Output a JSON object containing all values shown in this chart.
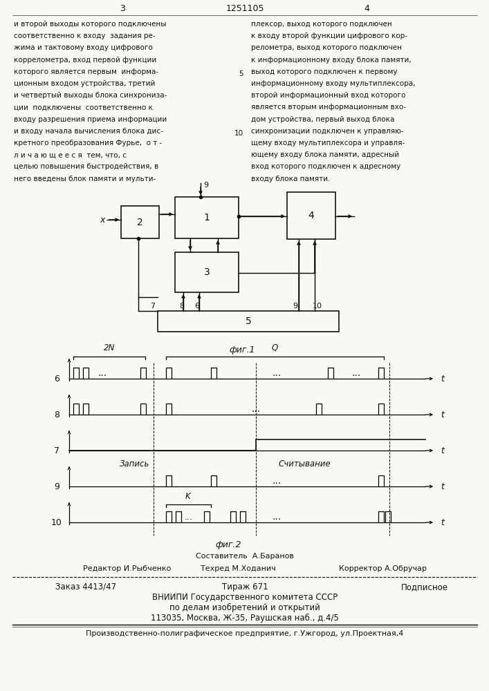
{
  "bg_color": "#f8f8f4",
  "text_color": "#111111",
  "page_num_left": "3",
  "page_num_center": "1251105",
  "page_num_right": "4",
  "text_left_lines": [
    "и второй выходы которого подключены",
    "соответственно к входу  задания ре-",
    "жима и тактовому входу цифрового",
    "коррелометра, вход первой функции",
    "которого является первым  информа-",
    "ционным входом устройства, третий",
    "и четвертый выходы блока синхрониза-",
    "ции  подключены  соответственно к",
    "входу разрешения приема информации",
    "и входу начала вычисления блока дис-",
    "кретного преобразования Фурье,  о т -",
    "л и ч а ю щ е е с я  тем, что, с",
    "целью повышения быстродействия, в",
    "него введены блок памяти и мульти-"
  ],
  "text_right_lines": [
    "плексор, выход которого подключен",
    "к входу второй функции цифрового кор-",
    "релометра, выход которого подключен",
    "к информационному входу блока памяти,",
    "выход которого подключен к первому",
    "информационному входу мультиплексора,",
    "второй информационный вход которого",
    "является вторым информационным вхо-",
    "дом устройства, первый выход блока",
    "синхронизации подключен к управляю-",
    "щему входу мультиплексора и управля-",
    "ющему входу блока памяти, адресный",
    "вход которого подключен к адресному",
    "входу блока памяти."
  ],
  "fig1_label": "фиг.1",
  "fig2_label": "фиг.2",
  "composer": "Составитель  А.Баранов",
  "editor": "Редактор И.Рыбченко",
  "techred": "Техред М.Ходанич",
  "corrector": "Корректор А.Обручар",
  "order": "Заказ 4413/47",
  "tirazh": "Тираж 671",
  "podpisnoe": "Подписное",
  "vniip1": "ВНИИПИ Государственного комитета СССР",
  "vniip2": "по делам изобретений и открытий",
  "vniip3": "113035, Москва, Ж-35, Раушская наб., д.4/5",
  "prod": "Производственно-полиграфическое предприятие, г.Ужгород, ул.Проектная,4"
}
